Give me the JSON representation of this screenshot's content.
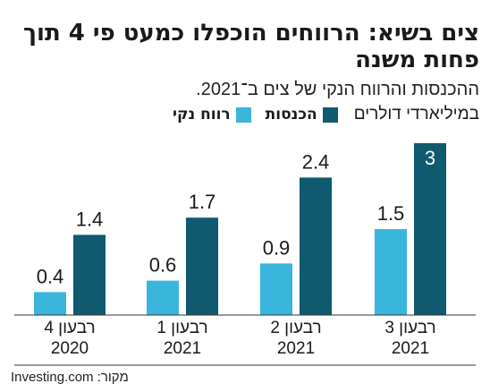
{
  "header": {
    "title": "צים בשיא: הרווחים הוכפלו כמעט פי 4 תוך פחות משנה",
    "subtitle": "ההכנסות והרווח הנקי של צים ב־2021.",
    "unit_label": "במיליארדי דולרים"
  },
  "legend": [
    {
      "label": "הכנסות",
      "color": "#0f5a6e"
    },
    {
      "label": "רווח נקי",
      "color": "#3ab5dc"
    }
  ],
  "source": "מקור: Investing.com",
  "chart_data": {
    "type": "bar",
    "categories": [
      {
        "line1": "רבעון 4",
        "line2": "2020"
      },
      {
        "line1": "רבעון 1",
        "line2": "2021"
      },
      {
        "line1": "רבעון 2",
        "line2": "2021"
      },
      {
        "line1": "רבעון 3",
        "line2": "2021"
      }
    ],
    "series": [
      {
        "name": "רווח נקי",
        "color": "#3ab5dc",
        "values": [
          0.4,
          0.6,
          0.9,
          1.5
        ],
        "labels": [
          "0.4",
          "0.6",
          "0.9",
          "1.5"
        ]
      },
      {
        "name": "הכנסות",
        "color": "#0f5a6e",
        "values": [
          1.4,
          1.7,
          2.4,
          3.0
        ],
        "labels": [
          "1.4",
          "1.7",
          "2.4",
          "3"
        ]
      }
    ],
    "ylim": [
      0,
      3
    ],
    "grid": false
  }
}
